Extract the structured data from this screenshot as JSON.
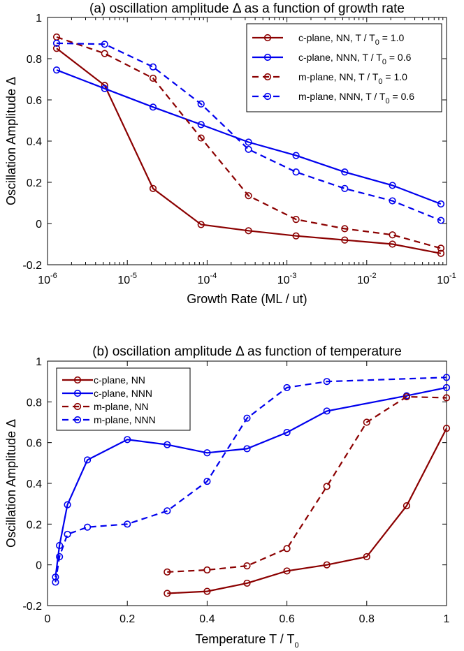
{
  "colors": {
    "dark_red": "#8b0000",
    "blue": "#0000ee"
  },
  "chart_data": [
    {
      "type": "line",
      "title": "(a) oscillation amplitude Δ as a function of growth rate",
      "xlabel": "Growth Rate (ML / ut)",
      "ylabel": "Oscillation Amplitude Δ",
      "x_scale": "log",
      "xlim": [
        1e-06,
        0.1
      ],
      "ylim": [
        -0.2,
        1.0
      ],
      "grid": false,
      "legend_position": "top-right",
      "x_ticks": [
        {
          "base": "10",
          "exp": "-6",
          "value": 1e-06
        },
        {
          "base": "10",
          "exp": "-5",
          "value": 1e-05
        },
        {
          "base": "10",
          "exp": "-4",
          "value": 0.0001
        },
        {
          "base": "10",
          "exp": "-3",
          "value": 0.001
        },
        {
          "base": "10",
          "exp": "-2",
          "value": 0.01
        },
        {
          "base": "10",
          "exp": "-1",
          "value": 0.1
        }
      ],
      "y_ticks": [
        "-0.2",
        "0",
        "0.2",
        "0.4",
        "0.6",
        "0.8",
        "1"
      ],
      "series": [
        {
          "name": "c-plane, NN, T / T",
          "name_sub": "0",
          "name_tail": " = 1.0",
          "color": "#8b0000",
          "dash": "solid",
          "x": [
            1.3e-06,
            5.2e-06,
            2.1e-05,
            8.4e-05,
            0.00033,
            0.0013,
            0.0053,
            0.021,
            0.085
          ],
          "y": [
            0.85,
            0.67,
            0.17,
            -0.005,
            -0.035,
            -0.06,
            -0.08,
            -0.1,
            -0.145
          ]
        },
        {
          "name": "c-plane, NNN, T / T",
          "name_sub": "0",
          "name_tail": " = 0.6",
          "color": "#0000ee",
          "dash": "solid",
          "x": [
            1.3e-06,
            5.2e-06,
            2.1e-05,
            8.4e-05,
            0.00033,
            0.0013,
            0.0053,
            0.021,
            0.085
          ],
          "y": [
            0.745,
            0.655,
            0.565,
            0.48,
            0.395,
            0.33,
            0.25,
            0.185,
            0.095
          ]
        },
        {
          "name": "m-plane, NN, T / T",
          "name_sub": "0",
          "name_tail": " = 1.0",
          "color": "#8b0000",
          "dash": "dashed",
          "x": [
            1.3e-06,
            5.2e-06,
            2.1e-05,
            8.4e-05,
            0.00033,
            0.0013,
            0.0053,
            0.021,
            0.085
          ],
          "y": [
            0.905,
            0.825,
            0.705,
            0.415,
            0.135,
            0.02,
            -0.025,
            -0.055,
            -0.12
          ]
        },
        {
          "name": "m-plane, NNN, T / T",
          "name_sub": "0",
          "name_tail": " = 0.6",
          "color": "#0000ee",
          "dash": "dashed",
          "x": [
            1.3e-06,
            5.2e-06,
            2.1e-05,
            8.4e-05,
            0.00033,
            0.0013,
            0.0053,
            0.021,
            0.085
          ],
          "y": [
            0.875,
            0.87,
            0.76,
            0.58,
            0.36,
            0.25,
            0.17,
            0.11,
            0.015
          ]
        }
      ]
    },
    {
      "type": "line",
      "title": "(b) oscillation amplitude Δ as function of temperature",
      "xlabel": "Temperature T / T",
      "xlabel_sub": "0",
      "ylabel": "Oscillation Amplitude Δ",
      "xlim": [
        0,
        1
      ],
      "ylim": [
        -0.2,
        1.0
      ],
      "grid": false,
      "legend_position": "top-left",
      "x_ticks": [
        "0",
        "0.2",
        "0.4",
        "0.6",
        "0.8",
        "1"
      ],
      "x_tick_values": [
        0,
        0.2,
        0.4,
        0.6,
        0.8,
        1
      ],
      "y_ticks": [
        "-0.2",
        "0",
        "0.2",
        "0.4",
        "0.6",
        "0.8",
        "1"
      ],
      "series": [
        {
          "name": "c-plane, NN",
          "color": "#8b0000",
          "dash": "solid",
          "x": [
            0.3,
            0.4,
            0.5,
            0.6,
            0.7,
            0.8,
            0.9,
            1.0
          ],
          "y": [
            -0.14,
            -0.13,
            -0.09,
            -0.03,
            0.0,
            0.04,
            0.29,
            0.67
          ]
        },
        {
          "name": "c-plane, NNN",
          "color": "#0000ee",
          "dash": "solid",
          "x": [
            0.02,
            0.03,
            0.05,
            0.1,
            0.2,
            0.3,
            0.4,
            0.5,
            0.6,
            0.7,
            0.9,
            1.0
          ],
          "y": [
            -0.06,
            0.095,
            0.295,
            0.515,
            0.615,
            0.59,
            0.55,
            0.57,
            0.65,
            0.755,
            0.83,
            0.87
          ]
        },
        {
          "name": "m-plane, NN",
          "color": "#8b0000",
          "dash": "dashed",
          "x": [
            0.3,
            0.4,
            0.5,
            0.6,
            0.7,
            0.8,
            0.9,
            1.0
          ],
          "y": [
            -0.035,
            -0.025,
            -0.005,
            0.08,
            0.385,
            0.7,
            0.825,
            0.82
          ]
        },
        {
          "name": "m-plane, NNN",
          "color": "#0000ee",
          "dash": "dashed",
          "x": [
            0.02,
            0.03,
            0.05,
            0.1,
            0.2,
            0.3,
            0.4,
            0.5,
            0.6,
            0.7,
            1.0
          ],
          "y": [
            -0.085,
            0.04,
            0.15,
            0.185,
            0.2,
            0.265,
            0.41,
            0.72,
            0.87,
            0.9,
            0.92
          ]
        }
      ]
    }
  ]
}
